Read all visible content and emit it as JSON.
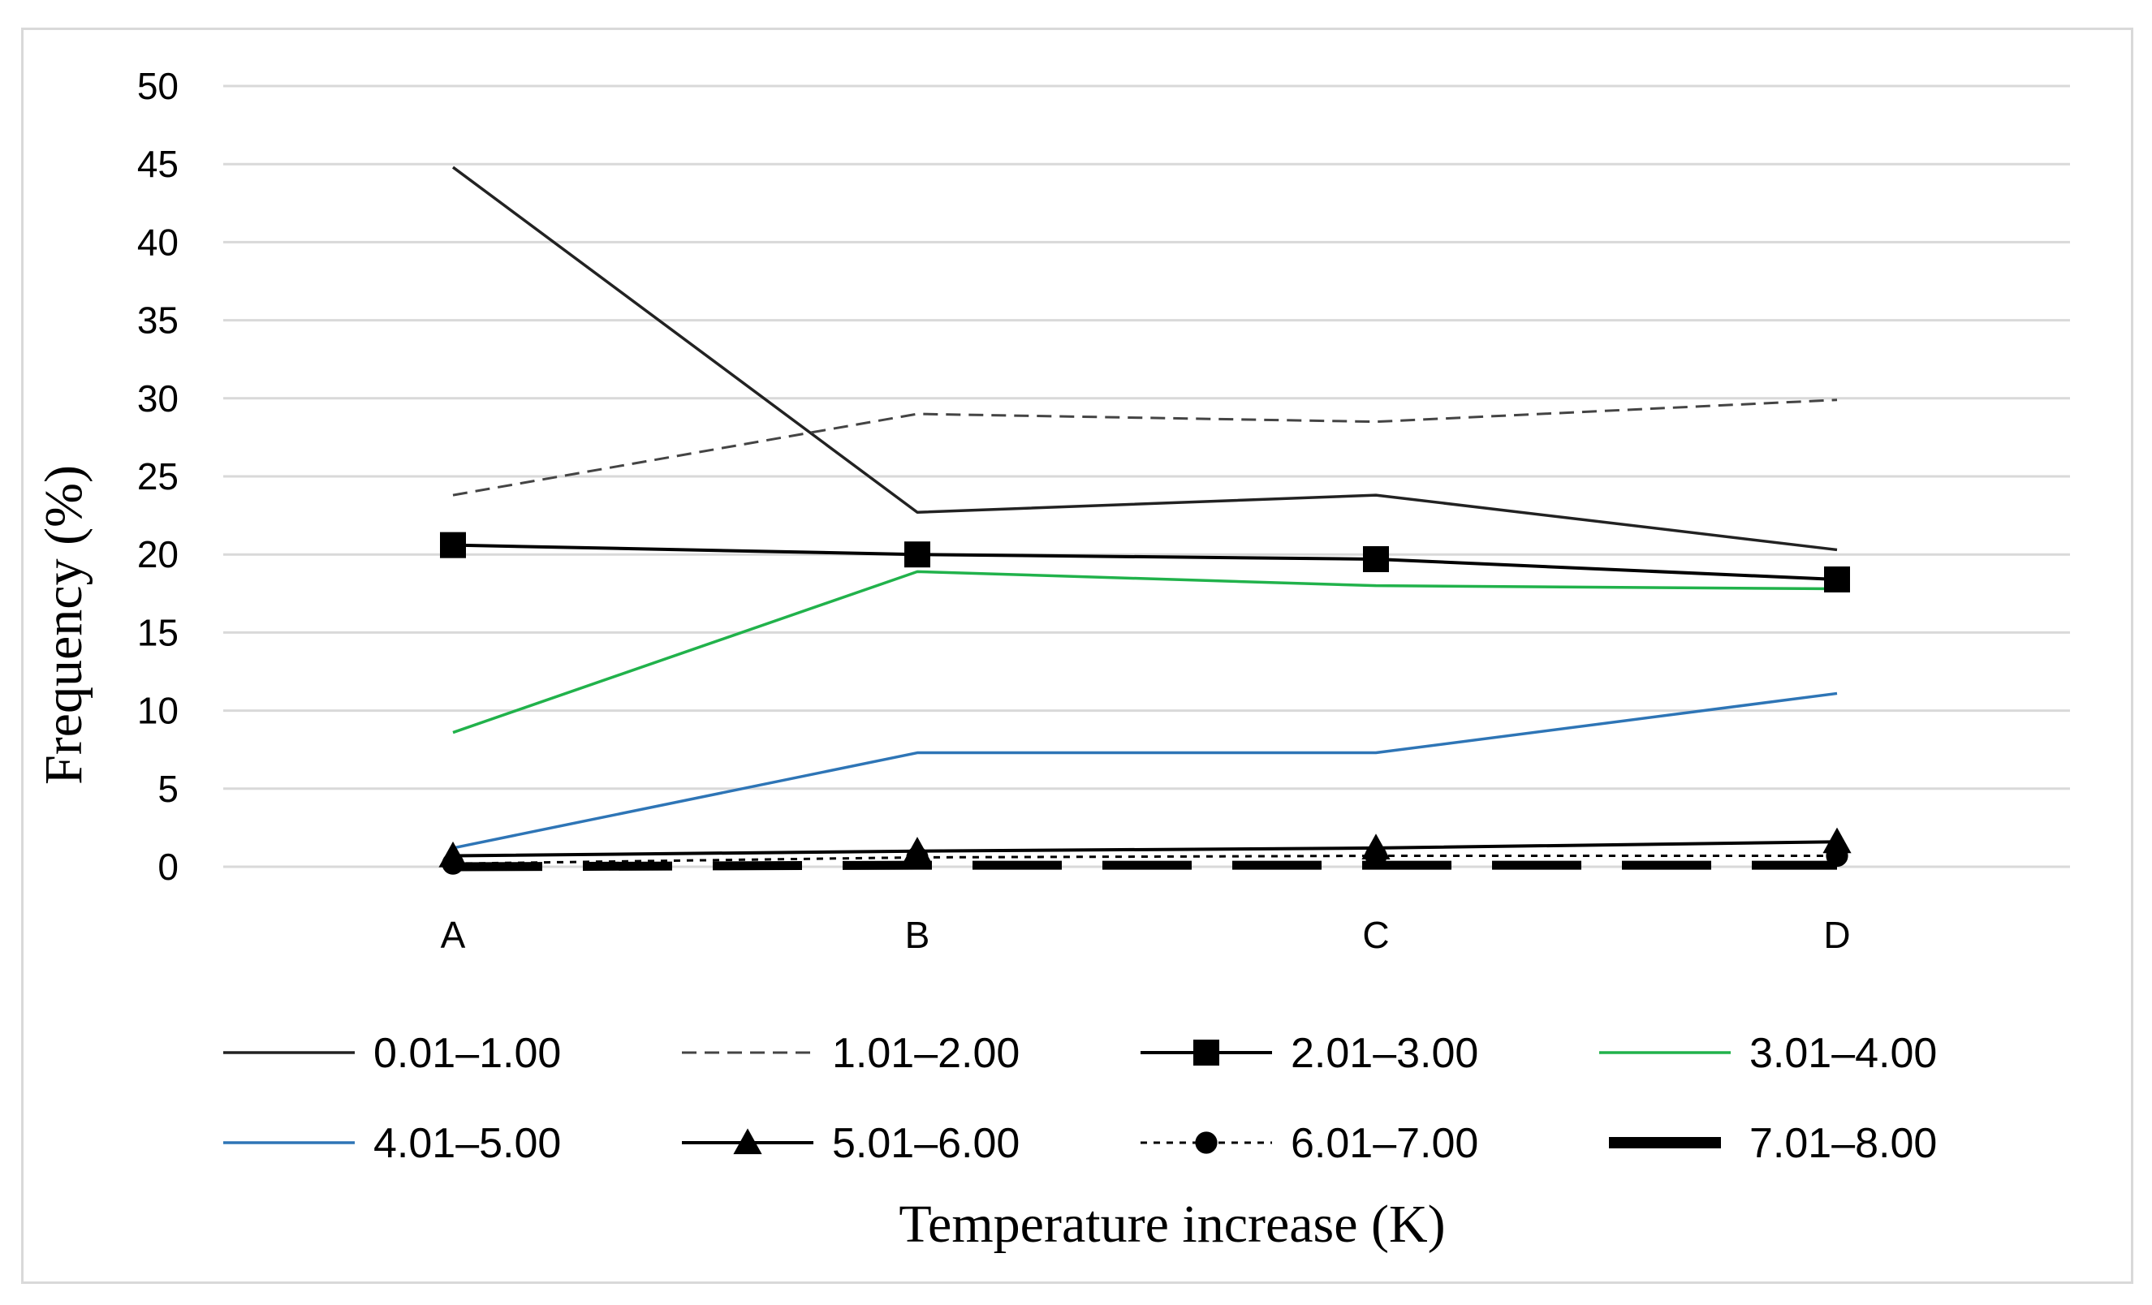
{
  "chart_data": {
    "type": "line",
    "title": "",
    "xlabel": "Temperature increase (K)",
    "ylabel": "Frequency (%)",
    "categories": [
      "A",
      "B",
      "C",
      "D"
    ],
    "ylim": [
      0,
      50
    ],
    "yticks": [
      0,
      5,
      10,
      15,
      20,
      25,
      30,
      35,
      40,
      45,
      50
    ],
    "grid": true,
    "legend_position": "bottom",
    "series": [
      {
        "name": "0.01–1.00",
        "values": [
          44.8,
          22.7,
          23.8,
          20.3
        ],
        "color": "#222222",
        "style": "solid",
        "marker": "none"
      },
      {
        "name": "1.01–2.00",
        "values": [
          23.8,
          29.0,
          28.5,
          29.9
        ],
        "color": "#444444",
        "style": "dashed",
        "marker": "none"
      },
      {
        "name": "2.01–3.00",
        "values": [
          20.6,
          20.0,
          19.7,
          18.4
        ],
        "color": "#000000",
        "style": "solid",
        "marker": "square"
      },
      {
        "name": "3.01–4.00",
        "values": [
          8.6,
          18.9,
          18.0,
          17.8
        ],
        "color": "#21b24b",
        "style": "solid",
        "marker": "none"
      },
      {
        "name": "4.01–5.00",
        "values": [
          1.2,
          7.3,
          7.3,
          11.1
        ],
        "color": "#2e75b6",
        "style": "solid",
        "marker": "none"
      },
      {
        "name": "5.01–6.00",
        "values": [
          0.7,
          1.0,
          1.2,
          1.6
        ],
        "color": "#000000",
        "style": "solid",
        "marker": "triangle"
      },
      {
        "name": "6.01–7.00",
        "values": [
          0.2,
          0.6,
          0.7,
          0.7
        ],
        "color": "#000000",
        "style": "dotted",
        "marker": "circle"
      },
      {
        "name": "7.01–8.00",
        "values": [
          0.0,
          0.1,
          0.1,
          0.1
        ],
        "color": "#000000",
        "style": "thickdash",
        "marker": "none"
      }
    ]
  }
}
